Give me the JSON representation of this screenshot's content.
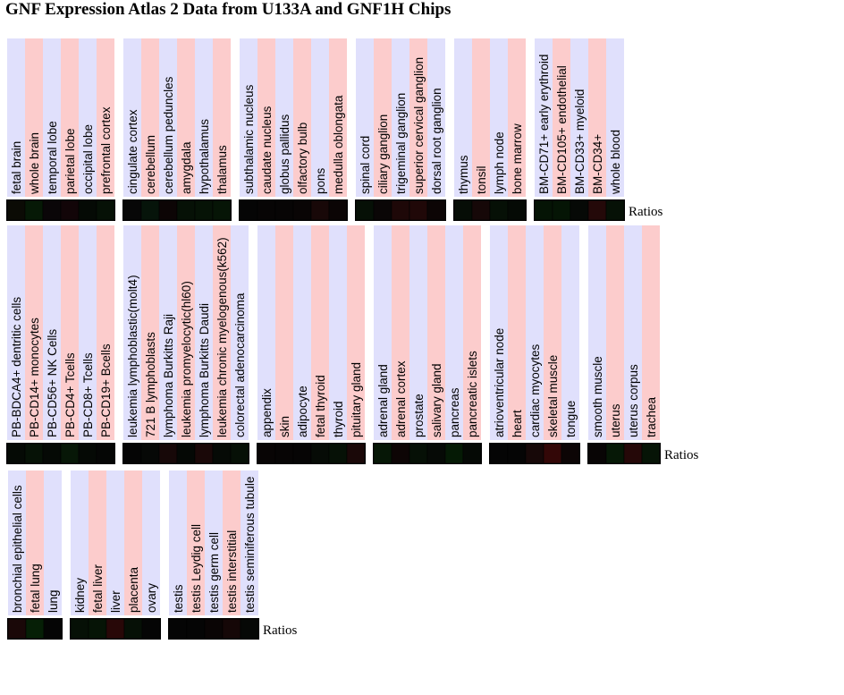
{
  "title": "GNF Expression Atlas 2 Data from U133A and GNF1H Chips",
  "colors": {
    "stripe_a": "#e0e0fc",
    "stripe_b": "#fccccc",
    "cell_border": "#000000"
  },
  "chart_data": {
    "type": "heatmap",
    "title": "GNF Expression Atlas 2 Data from U133A and GNF1H Chips",
    "row_label": "Ratios",
    "rows": [
      {
        "label": "Ratios",
        "groups": [
          {
            "tissues": [
              "fetal brain",
              "whole brain",
              "temporal lobe",
              "parietal lobe",
              "occipital lobe",
              "prefrontal cortex"
            ],
            "cells": [
              "#0b0b05",
              "#061906",
              "#0a0608",
              "#120508",
              "#050a05",
              "#061106"
            ]
          },
          {
            "tissues": [
              "cingulate cortex",
              "cerebellum",
              "cerebellum peduncles",
              "amygdala",
              "hypothalamus",
              "thalamus"
            ],
            "cells": [
              "#070707",
              "#06140a",
              "#0c0505",
              "#061106",
              "#061306",
              "#061506"
            ]
          },
          {
            "tissues": [
              "subthalamic nucleus",
              "caudate nucleus",
              "globus pallidus",
              "olfactory bulb",
              "pons",
              "medulla oblongata"
            ],
            "cells": [
              "#050505",
              "#070505",
              "#070505",
              "#090505",
              "#180808",
              "#0b0505"
            ]
          },
          {
            "tissues": [
              "spinal cord",
              "ciliary ganglion",
              "trigeminal ganglion",
              "superior cervical ganglion",
              "dorsal root ganglion"
            ],
            "cells": [
              "#061006",
              "#0a0606",
              "#1e0808",
              "#200808",
              "#0c0505"
            ]
          },
          {
            "tissues": [
              "thymus",
              "tonsil",
              "lymph node",
              "bone marrow"
            ],
            "cells": [
              "#060d06",
              "#160808",
              "#061006",
              "#050a05"
            ]
          },
          {
            "tissues": [
              "BM-CD71+ early erythroid",
              "BM-CD105+ endothelial",
              "BM-CD33+ myeloid",
              "BM-CD34+",
              "whole blood"
            ],
            "cells": [
              "#051405",
              "#051505",
              "#060906",
              "#240909",
              "#061106"
            ]
          }
        ]
      },
      {
        "label": "Ratios",
        "groups": [
          {
            "tissues": [
              "PB-BDCA4+ dentritic cells",
              "PB-CD14+ monocytes",
              "PB-CD56+ NK Cells",
              "PB-CD4+ Tcells",
              "PB-CD8+ Tcells",
              "PB-CD19+ Bcells"
            ],
            "cells": [
              "#050a05",
              "#061206",
              "#050905",
              "#071707",
              "#050905",
              "#050605"
            ]
          },
          {
            "tissues": [
              "leukemia lymphoblastic(molt4)",
              "721 B lymphoblasts",
              "lymphoma Burkitts Raji",
              "leukemia promyelocytic(hl60)",
              "lymphoma Burkitts Daudi",
              "leukemia chronic myelogenous(k562)",
              "colorectal adenocarcinoma"
            ],
            "cells": [
              "#050505",
              "#060806",
              "#170808",
              "#050805",
              "#1a0808",
              "#060a06",
              "#061006"
            ]
          },
          {
            "tissues": [
              "appendix",
              "skin",
              "adipocyte",
              "fetal thyroid",
              "thyroid",
              "pituitary gland"
            ],
            "cells": [
              "#080505",
              "#070505",
              "#060505",
              "#060b06",
              "#061106",
              "#1a0808"
            ]
          },
          {
            "tissues": [
              "adrenal gland",
              "adrenal cortex",
              "prostate",
              "salivary gland",
              "pancreas",
              "pancreatic islets"
            ],
            "cells": [
              "#061706",
              "#0d0505",
              "#061006",
              "#060a06",
              "#051a05",
              "#050905"
            ]
          },
          {
            "tissues": [
              "atrioventricular node",
              "heart",
              "cardiac myocytes",
              "skeletal muscle",
              "tongue"
            ],
            "cells": [
              "#050505",
              "#050505",
              "#170808",
              "#330707",
              "#0c0505"
            ]
          },
          {
            "tissues": [
              "smooth muscle",
              "uterus",
              "uterus corpus",
              "trachea"
            ],
            "cells": [
              "#080505",
              "#061806",
              "#250808",
              "#061406"
            ]
          }
        ]
      },
      {
        "label": "Ratios",
        "groups": [
          {
            "tissues": [
              "bronchial epithelial cells",
              "fetal lung",
              "lung"
            ],
            "cells": [
              "#1a0808",
              "#061f06",
              "#050505"
            ]
          },
          {
            "tissues": [
              "kidney",
              "fetal liver",
              "liver",
              "placenta",
              "ovary"
            ],
            "cells": [
              "#061006",
              "#061406",
              "#280808",
              "#061006",
              "#050505"
            ]
          },
          {
            "tissues": [
              "testis",
              "testis Leydig cell",
              "testis germ cell",
              "testis interstitial",
              "testis seminiferous tubule"
            ],
            "cells": [
              "#050505",
              "#050505",
              "#0a0505",
              "#150707",
              "#060806"
            ]
          }
        ]
      }
    ]
  }
}
